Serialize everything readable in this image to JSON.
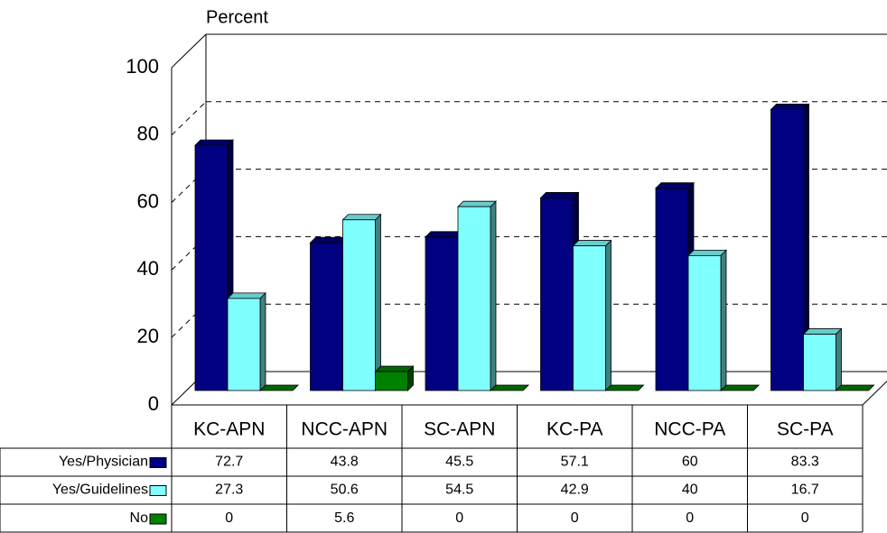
{
  "chart_data": {
    "type": "bar3d",
    "y_axis_label": "Percent",
    "categories": [
      "KC-APN",
      "NCC-APN",
      "SC-APN",
      "KC-PA",
      "NCC-PA",
      "SC-PA"
    ],
    "series": [
      {
        "name": "Yes/Physician",
        "color": "#000080",
        "values": [
          72.7,
          43.8,
          45.5,
          57.1,
          60,
          83.3
        ]
      },
      {
        "name": "Yes/Guidelines",
        "color": "#80ffff",
        "values": [
          27.3,
          50.6,
          54.5,
          42.9,
          40,
          16.7
        ]
      },
      {
        "name": "No",
        "color": "#008000",
        "values": [
          0,
          5.6,
          0,
          0,
          0,
          0
        ]
      }
    ],
    "ylim": [
      0,
      100
    ],
    "yticks": [
      0,
      20,
      40,
      60,
      80,
      100
    ],
    "grid": true,
    "data_table": true
  }
}
